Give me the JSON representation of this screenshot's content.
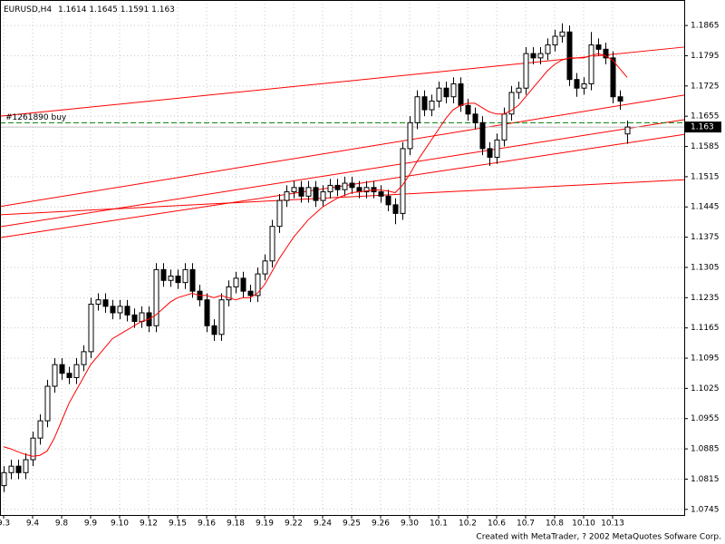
{
  "chart_data": {
    "type": "candlestick",
    "symbol": "EURUSD,H4",
    "footer": "Created with MetaTrader, ? 2002 MetaQuotes Sofware Corp.",
    "color": "#000000",
    "bull_fill": "#ffffff",
    "bear_fill": "#000000",
    "ylim": [
      1.0732,
      1.1924
    ],
    "yticks": [
      1.0745,
      1.0815,
      1.0885,
      1.0955,
      1.1025,
      1.1095,
      1.1165,
      1.1235,
      1.1305,
      1.1375,
      1.1445,
      1.1515,
      1.1585,
      1.1655,
      1.1725,
      1.1795,
      1.1865
    ],
    "grid": true,
    "x_labels": [
      "9.3",
      "9.4",
      "9.8",
      "9.9",
      "9.10",
      "9.12",
      "9.15",
      "9.16",
      "9.18",
      "9.19",
      "9.22",
      "9.24",
      "9.25",
      "9.26",
      "9.30",
      "10.1",
      "10.2",
      "10.6",
      "10.7",
      "10.8",
      "10.10",
      "10.13"
    ],
    "open": [
      1.08,
      1.083,
      1.0845,
      1.083,
      1.086,
      1.091,
      1.095,
      1.103,
      1.108,
      1.106,
      1.105,
      1.108,
      1.111,
      1.122,
      1.123,
      1.1215,
      1.12,
      1.1215,
      1.1195,
      1.118,
      1.12,
      1.117,
      1.13,
      1.1275,
      1.1285,
      1.127,
      1.13,
      1.125,
      1.123,
      1.117,
      1.115,
      1.123,
      1.126,
      1.128,
      1.125,
      1.124,
      1.129,
      1.132,
      1.14,
      1.146,
      1.148,
      1.149,
      1.147,
      1.149,
      1.146,
      1.148,
      1.1495,
      1.1485,
      1.15,
      1.149,
      1.148,
      1.149,
      1.148,
      1.147,
      1.145,
      1.143,
      1.158,
      1.164,
      1.17,
      1.167,
      1.169,
      1.172,
      1.17,
      1.173,
      1.168,
      1.166,
      1.164,
      1.158,
      1.156,
      1.16,
      1.166,
      1.171,
      1.172,
      1.18,
      1.179,
      1.18,
      1.182,
      1.184,
      1.185,
      1.174,
      1.172,
      1.173,
      1.182,
      1.181,
      1.179,
      1.17,
      1.1614
    ],
    "high": [
      1.0845,
      1.086,
      1.086,
      1.0875,
      1.0925,
      1.0965,
      1.1045,
      1.1095,
      1.1095,
      1.1075,
      1.1095,
      1.1125,
      1.1235,
      1.1245,
      1.1245,
      1.123,
      1.123,
      1.123,
      1.121,
      1.1215,
      1.1215,
      1.1315,
      1.1315,
      1.13,
      1.13,
      1.1315,
      1.1315,
      1.1265,
      1.1245,
      1.1185,
      1.1245,
      1.1275,
      1.1295,
      1.1295,
      1.1265,
      1.1305,
      1.1335,
      1.1415,
      1.1475,
      1.1495,
      1.1505,
      1.1505,
      1.1505,
      1.1505,
      1.1495,
      1.151,
      1.151,
      1.1515,
      1.1515,
      1.1505,
      1.1505,
      1.1505,
      1.1495,
      1.1485,
      1.1465,
      1.1595,
      1.1655,
      1.1715,
      1.1715,
      1.1705,
      1.1735,
      1.1735,
      1.1745,
      1.1745,
      1.1695,
      1.1675,
      1.1655,
      1.1595,
      1.1615,
      1.1675,
      1.1725,
      1.1735,
      1.1815,
      1.1815,
      1.1815,
      1.1835,
      1.1855,
      1.187,
      1.1865,
      1.1755,
      1.1745,
      1.185,
      1.1835,
      1.1825,
      1.1805,
      1.1715,
      1.1645
    ],
    "low": [
      1.0785,
      1.0815,
      1.0815,
      1.0815,
      1.0845,
      1.0895,
      1.0935,
      1.1015,
      1.1045,
      1.1035,
      1.1035,
      1.1065,
      1.1095,
      1.1205,
      1.12,
      1.1185,
      1.1185,
      1.118,
      1.1165,
      1.1165,
      1.1155,
      1.1155,
      1.126,
      1.126,
      1.1255,
      1.1255,
      1.1235,
      1.1215,
      1.1155,
      1.1135,
      1.1135,
      1.1215,
      1.1245,
      1.1235,
      1.1225,
      1.1225,
      1.1275,
      1.1305,
      1.1385,
      1.1445,
      1.1465,
      1.1455,
      1.1455,
      1.1445,
      1.1445,
      1.1465,
      1.147,
      1.147,
      1.1475,
      1.1465,
      1.1465,
      1.1465,
      1.1455,
      1.1435,
      1.1405,
      1.1415,
      1.1565,
      1.1625,
      1.1655,
      1.1655,
      1.1675,
      1.1685,
      1.1685,
      1.1665,
      1.1645,
      1.1625,
      1.1565,
      1.154,
      1.1545,
      1.1585,
      1.1645,
      1.1695,
      1.1705,
      1.1775,
      1.1775,
      1.1785,
      1.1805,
      1.1825,
      1.1725,
      1.17,
      1.1705,
      1.1715,
      1.1795,
      1.1775,
      1.1685,
      1.167,
      1.1591
    ],
    "close": [
      1.083,
      1.0845,
      1.083,
      1.086,
      1.091,
      1.095,
      1.103,
      1.108,
      1.106,
      1.105,
      1.108,
      1.111,
      1.122,
      1.123,
      1.1215,
      1.12,
      1.1215,
      1.1195,
      1.118,
      1.12,
      1.117,
      1.13,
      1.1275,
      1.1285,
      1.127,
      1.13,
      1.125,
      1.123,
      1.117,
      1.115,
      1.123,
      1.126,
      1.128,
      1.125,
      1.124,
      1.129,
      1.132,
      1.14,
      1.146,
      1.148,
      1.149,
      1.147,
      1.149,
      1.146,
      1.148,
      1.1495,
      1.1485,
      1.15,
      1.149,
      1.148,
      1.149,
      1.148,
      1.147,
      1.145,
      1.143,
      1.158,
      1.164,
      1.17,
      1.167,
      1.169,
      1.172,
      1.17,
      1.173,
      1.168,
      1.166,
      1.164,
      1.158,
      1.156,
      1.16,
      1.166,
      1.171,
      1.172,
      1.18,
      1.179,
      1.18,
      1.182,
      1.184,
      1.185,
      1.174,
      1.172,
      1.173,
      1.182,
      1.181,
      1.179,
      1.17,
      1.169,
      1.163
    ],
    "ma": {
      "color": "#ff0000",
      "values": [
        1.089,
        1.0885,
        1.0878,
        1.0872,
        1.0868,
        1.087,
        1.088,
        1.091,
        1.095,
        1.099,
        1.102,
        1.105,
        1.108,
        1.11,
        1.112,
        1.114,
        1.115,
        1.116,
        1.117,
        1.118,
        1.1185,
        1.1195,
        1.121,
        1.1225,
        1.1235,
        1.124,
        1.1245,
        1.124,
        1.124,
        1.1235,
        1.124,
        1.1235,
        1.123,
        1.1235,
        1.1235,
        1.1245,
        1.1265,
        1.1295,
        1.1325,
        1.135,
        1.1375,
        1.1395,
        1.1415,
        1.143,
        1.1445,
        1.1455,
        1.1465,
        1.1472,
        1.1478,
        1.148,
        1.1482,
        1.1484,
        1.1484,
        1.1482,
        1.1478,
        1.1495,
        1.152,
        1.155,
        1.1575,
        1.16,
        1.1625,
        1.165,
        1.167,
        1.168,
        1.1685,
        1.1685,
        1.1675,
        1.1665,
        1.166,
        1.166,
        1.1668,
        1.168,
        1.17,
        1.172,
        1.174,
        1.176,
        1.1775,
        1.1785,
        1.179,
        1.179,
        1.179,
        1.1795,
        1.18,
        1.1795,
        1.1785,
        1.1765,
        1.1745
      ]
    },
    "trend_lines": {
      "color": "#ff0000",
      "lines": [
        {
          "start": 1.1655,
          "end": 1.1815
        },
        {
          "start": 1.1446,
          "end": 1.1704
        },
        {
          "start": 1.1427,
          "end": 1.1508
        },
        {
          "start": 1.1399,
          "end": 1.1647
        },
        {
          "start": 1.1374,
          "end": 1.1613
        }
      ]
    },
    "order": {
      "label": "#1261890 buy",
      "price": 1.164,
      "color": "#008000"
    }
  }
}
